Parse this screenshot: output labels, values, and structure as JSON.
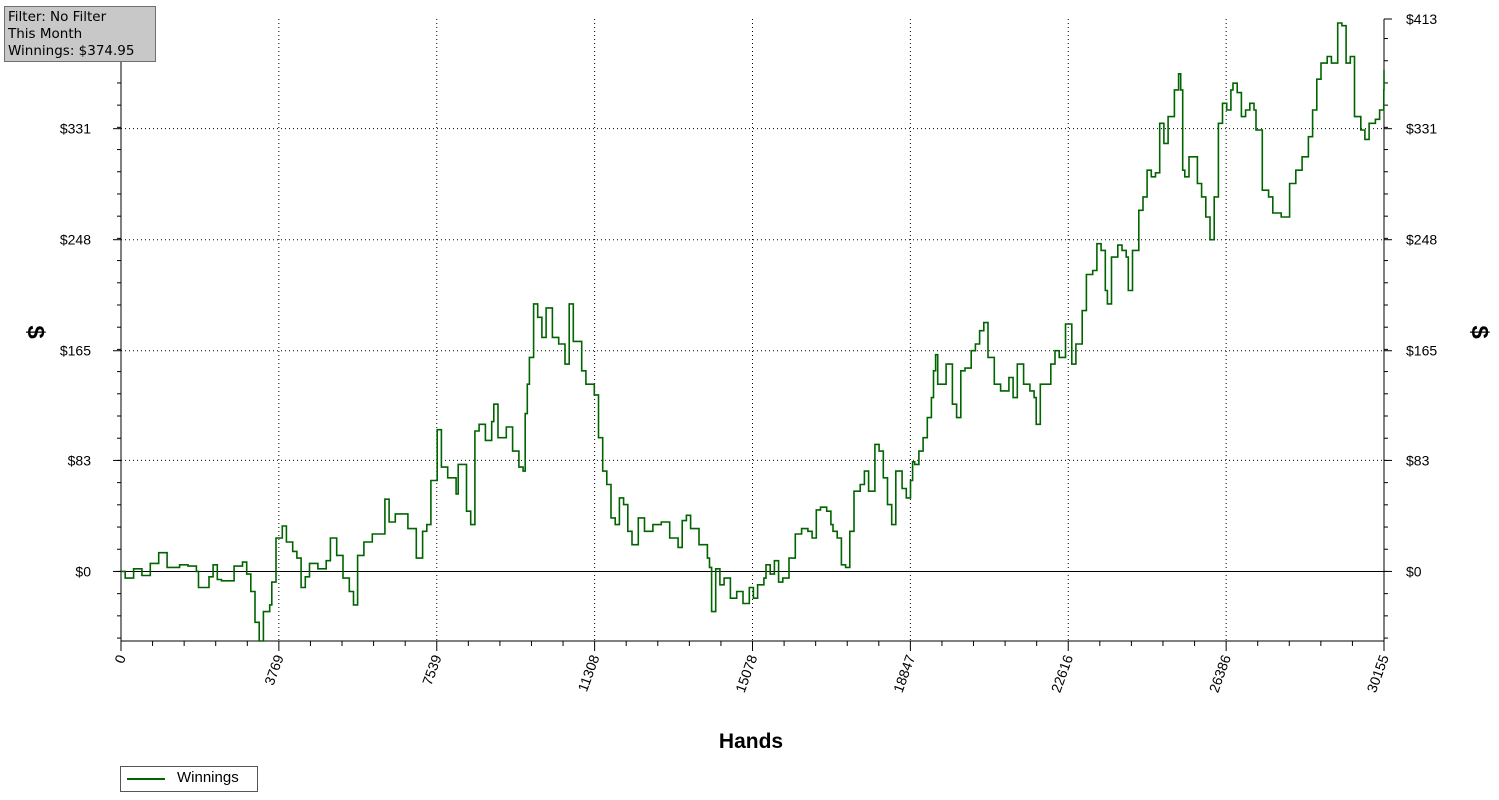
{
  "info_box": {
    "filter": "Filter: No Filter",
    "period": "This Month",
    "winnings": "Winnings: $374.95"
  },
  "colors": {
    "series": "#006400",
    "zero_line": "#000000",
    "grid": "#000000"
  },
  "chart_data": {
    "type": "line",
    "xlabel": "Hands",
    "ylabel": "$",
    "ylabel_right": "$",
    "xlim": [
      0,
      30155
    ],
    "ylim": [
      -52,
      413
    ],
    "x_ticks": [
      0,
      3769,
      7539,
      11308,
      15078,
      18847,
      22616,
      26386,
      30155
    ],
    "x_tick_labels": [
      "0",
      "3769",
      "7539",
      "11308",
      "15078",
      "18847",
      "22616",
      "26386",
      "30155"
    ],
    "y_ticks": [
      0,
      83,
      165,
      248,
      331,
      413
    ],
    "y_tick_labels": [
      "$0",
      "$83",
      "$165",
      "$248",
      "$331",
      "$413"
    ],
    "grid": true,
    "legend": "bottom-left",
    "series": [
      {
        "name": "Winnings",
        "points": [
          [
            0,
            0
          ],
          [
            100,
            -5
          ],
          [
            300,
            2
          ],
          [
            500,
            -3
          ],
          [
            700,
            6
          ],
          [
            900,
            14
          ],
          [
            1100,
            3
          ],
          [
            1400,
            5
          ],
          [
            1600,
            4
          ],
          [
            1800,
            0
          ],
          [
            1850,
            -12
          ],
          [
            2100,
            -4
          ],
          [
            2200,
            5
          ],
          [
            2300,
            -6
          ],
          [
            2400,
            -7
          ],
          [
            2700,
            4
          ],
          [
            2900,
            7
          ],
          [
            3000,
            -2
          ],
          [
            3100,
            -15
          ],
          [
            3200,
            -38
          ],
          [
            3300,
            -52
          ],
          [
            3400,
            -30
          ],
          [
            3550,
            -25
          ],
          [
            3600,
            -8
          ],
          [
            3700,
            25
          ],
          [
            3850,
            34
          ],
          [
            3950,
            22
          ],
          [
            4100,
            15
          ],
          [
            4200,
            10
          ],
          [
            4300,
            -12
          ],
          [
            4400,
            -4
          ],
          [
            4500,
            6
          ],
          [
            4700,
            2
          ],
          [
            4900,
            8
          ],
          [
            5000,
            25
          ],
          [
            5150,
            12
          ],
          [
            5300,
            -5
          ],
          [
            5450,
            -15
          ],
          [
            5550,
            -25
          ],
          [
            5650,
            12
          ],
          [
            5800,
            22
          ],
          [
            6000,
            28
          ],
          [
            6300,
            54
          ],
          [
            6400,
            37
          ],
          [
            6550,
            43
          ],
          [
            6850,
            32
          ],
          [
            7050,
            10
          ],
          [
            7200,
            30
          ],
          [
            7300,
            35
          ],
          [
            7400,
            68
          ],
          [
            7550,
            106
          ],
          [
            7650,
            78
          ],
          [
            7800,
            70
          ],
          [
            8000,
            58
          ],
          [
            8050,
            80
          ],
          [
            8250,
            45
          ],
          [
            8350,
            35
          ],
          [
            8450,
            105
          ],
          [
            8550,
            110
          ],
          [
            8700,
            98
          ],
          [
            8850,
            112
          ],
          [
            8900,
            125
          ],
          [
            9000,
            100
          ],
          [
            9200,
            108
          ],
          [
            9350,
            90
          ],
          [
            9500,
            78
          ],
          [
            9600,
            75
          ],
          [
            9650,
            118
          ],
          [
            9700,
            140
          ],
          [
            9750,
            160
          ],
          [
            9850,
            200
          ],
          [
            9950,
            190
          ],
          [
            10050,
            175
          ],
          [
            10150,
            197
          ],
          [
            10300,
            175
          ],
          [
            10450,
            170
          ],
          [
            10600,
            155
          ],
          [
            10700,
            200
          ],
          [
            10800,
            172
          ],
          [
            11000,
            150
          ],
          [
            11100,
            140
          ],
          [
            11200,
            140
          ],
          [
            11300,
            132
          ],
          [
            11400,
            100
          ],
          [
            11500,
            75
          ],
          [
            11600,
            65
          ],
          [
            11700,
            40
          ],
          [
            11800,
            35
          ],
          [
            11900,
            55
          ],
          [
            12000,
            50
          ],
          [
            12100,
            30
          ],
          [
            12200,
            20
          ],
          [
            12350,
            40
          ],
          [
            12500,
            30
          ],
          [
            12700,
            35
          ],
          [
            12900,
            37
          ],
          [
            13100,
            25
          ],
          [
            13300,
            18
          ],
          [
            13400,
            38
          ],
          [
            13500,
            42
          ],
          [
            13600,
            32
          ],
          [
            13800,
            20
          ],
          [
            14000,
            10
          ],
          [
            14050,
            3
          ],
          [
            14100,
            -30
          ],
          [
            14200,
            2
          ],
          [
            14300,
            -10
          ],
          [
            14400,
            -5
          ],
          [
            14550,
            -20
          ],
          [
            14700,
            -15
          ],
          [
            14850,
            -24
          ],
          [
            15000,
            -12
          ],
          [
            15100,
            -20
          ],
          [
            15200,
            -10
          ],
          [
            15350,
            -5
          ],
          [
            15400,
            5
          ],
          [
            15500,
            -2
          ],
          [
            15600,
            8
          ],
          [
            15700,
            -8
          ],
          [
            15800,
            -5
          ],
          [
            15950,
            10
          ],
          [
            16100,
            28
          ],
          [
            16250,
            32
          ],
          [
            16400,
            30
          ],
          [
            16500,
            25
          ],
          [
            16600,
            46
          ],
          [
            16700,
            48
          ],
          [
            16850,
            45
          ],
          [
            16950,
            35
          ],
          [
            17000,
            30
          ],
          [
            17100,
            25
          ],
          [
            17200,
            5
          ],
          [
            17300,
            3
          ],
          [
            17400,
            30
          ],
          [
            17500,
            60
          ],
          [
            17650,
            65
          ],
          [
            17750,
            75
          ],
          [
            17850,
            60
          ],
          [
            18000,
            95
          ],
          [
            18100,
            90
          ],
          [
            18200,
            70
          ],
          [
            18300,
            50
          ],
          [
            18400,
            35
          ],
          [
            18500,
            75
          ],
          [
            18650,
            62
          ],
          [
            18750,
            55
          ],
          [
            18850,
            68
          ],
          [
            18900,
            82
          ],
          [
            18950,
            80
          ],
          [
            19050,
            90
          ],
          [
            19150,
            100
          ],
          [
            19250,
            115
          ],
          [
            19350,
            130
          ],
          [
            19400,
            150
          ],
          [
            19450,
            162
          ],
          [
            19500,
            140
          ],
          [
            19600,
            140
          ],
          [
            19700,
            155
          ],
          [
            19850,
            125
          ],
          [
            19950,
            115
          ],
          [
            20050,
            150
          ],
          [
            20150,
            152
          ],
          [
            20300,
            165
          ],
          [
            20400,
            170
          ],
          [
            20500,
            180
          ],
          [
            20600,
            186
          ],
          [
            20700,
            160
          ],
          [
            20850,
            140
          ],
          [
            21000,
            135
          ],
          [
            21200,
            145
          ],
          [
            21300,
            130
          ],
          [
            21400,
            155
          ],
          [
            21550,
            140
          ],
          [
            21700,
            135
          ],
          [
            21800,
            130
          ],
          [
            21850,
            110
          ],
          [
            21950,
            140
          ],
          [
            22050,
            140
          ],
          [
            22200,
            155
          ],
          [
            22300,
            165
          ],
          [
            22400,
            160
          ],
          [
            22550,
            185
          ],
          [
            22700,
            155
          ],
          [
            22800,
            170
          ],
          [
            22950,
            195
          ],
          [
            23050,
            222
          ],
          [
            23200,
            225
          ],
          [
            23300,
            245
          ],
          [
            23400,
            240
          ],
          [
            23500,
            210
          ],
          [
            23550,
            200
          ],
          [
            23650,
            235
          ],
          [
            23800,
            244
          ],
          [
            23900,
            240
          ],
          [
            24000,
            235
          ],
          [
            24050,
            210
          ],
          [
            24150,
            240
          ],
          [
            24300,
            270
          ],
          [
            24400,
            280
          ],
          [
            24500,
            300
          ],
          [
            24600,
            295
          ],
          [
            24700,
            298
          ],
          [
            24800,
            335
          ],
          [
            24900,
            320
          ],
          [
            25000,
            340
          ],
          [
            25100,
            340
          ],
          [
            25150,
            360
          ],
          [
            25250,
            372
          ],
          [
            25300,
            360
          ],
          [
            25350,
            300
          ],
          [
            25400,
            295
          ],
          [
            25500,
            310
          ],
          [
            25600,
            310
          ],
          [
            25700,
            290
          ],
          [
            25800,
            280
          ],
          [
            25900,
            265
          ],
          [
            26000,
            248
          ],
          [
            26100,
            280
          ],
          [
            26200,
            335
          ],
          [
            26300,
            350
          ],
          [
            26400,
            345
          ],
          [
            26500,
            360
          ],
          [
            26550,
            365
          ],
          [
            26650,
            358
          ],
          [
            26750,
            340
          ],
          [
            26850,
            345
          ],
          [
            26950,
            350
          ],
          [
            27050,
            345
          ],
          [
            27100,
            330
          ],
          [
            27250,
            285
          ],
          [
            27400,
            280
          ],
          [
            27500,
            268
          ],
          [
            27700,
            265
          ],
          [
            27900,
            290
          ],
          [
            28050,
            300
          ],
          [
            28200,
            310
          ],
          [
            28350,
            325
          ],
          [
            28450,
            345
          ],
          [
            28550,
            368
          ],
          [
            28650,
            380
          ],
          [
            28800,
            385
          ],
          [
            28900,
            380
          ],
          [
            29050,
            410
          ],
          [
            29150,
            408
          ],
          [
            29250,
            380
          ],
          [
            29350,
            385
          ],
          [
            29450,
            340
          ],
          [
            29600,
            330
          ],
          [
            29700,
            323
          ],
          [
            29800,
            335
          ],
          [
            29950,
            338
          ],
          [
            30050,
            345
          ],
          [
            30150,
            360
          ],
          [
            30155,
            374.95
          ]
        ]
      }
    ]
  }
}
